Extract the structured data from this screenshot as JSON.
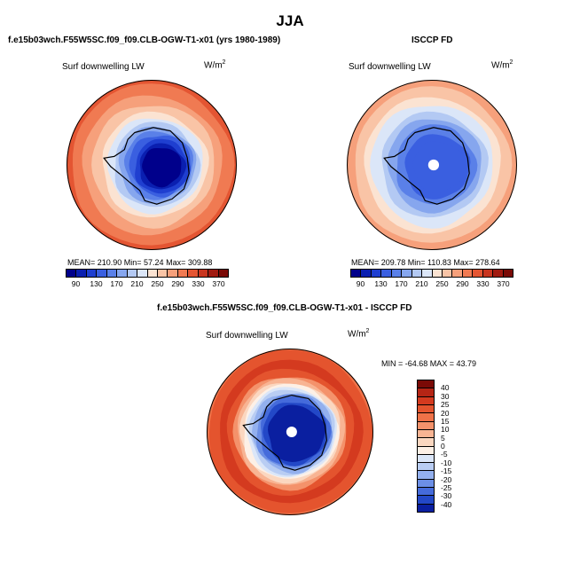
{
  "title": "JJA",
  "panels": {
    "model": {
      "case_title": "f.e15b03wch.F55W5SC.f09_f09.CLB-OGW-T1-x01 (yrs 1980-1989)",
      "variable": "Surf downwelling LW",
      "units": "W/m",
      "units_sup": "2",
      "stats": "MEAN= 210.90   Min=  57.24   Max= 309.88"
    },
    "obs": {
      "case_title": "ISCCP FD",
      "variable": "Surf downwelling LW",
      "units": "W/m",
      "units_sup": "2",
      "stats": "MEAN= 209.78   Min= 110.83   Max= 278.64"
    },
    "diff": {
      "case_title": "f.e15b03wch.F55W5SC.f09_f09.CLB-OGW-T1-x01 - ISCCP FD",
      "variable": "Surf downwelling LW",
      "units": "W/m",
      "units_sup": "2",
      "stats": "MIN = -64.68  MAX =  43.79"
    }
  },
  "chart_data": [
    {
      "type": "heatmap",
      "projection": "south-polar-stereographic",
      "title": "f.e15b03wch.F55W5SC.f09_f09.CLB-OGW-T1-x01 (yrs 1980-1989)",
      "variable": "Surf downwelling LW",
      "units": "W/m2",
      "mean": 210.9,
      "min": 57.24,
      "max": 309.88,
      "colorbar": {
        "orientation": "horizontal",
        "levels": [
          90,
          110,
          130,
          150,
          170,
          190,
          210,
          230,
          250,
          270,
          290,
          310,
          330,
          350,
          370
        ],
        "tick_labels": [
          "90",
          "130",
          "170",
          "210",
          "250",
          "290",
          "330",
          "370"
        ],
        "colors": [
          "#00008b",
          "#0a1fb0",
          "#1f3fd0",
          "#3a5fe0",
          "#5a80e8",
          "#86a6ee",
          "#b3c9f3",
          "#dbe6f8",
          "#fbe3d2",
          "#f9c4a6",
          "#f6a07b",
          "#f07a52",
          "#e45532",
          "#c8351f",
          "#a01a10",
          "#7a0a06"
        ]
      },
      "regions_approx": {
        "east_antarctic_interior": 80,
        "west_antarctic": 150,
        "sea_ice_zone": 200,
        "southern_ocean_north": 300
      }
    },
    {
      "type": "heatmap",
      "projection": "south-polar-stereographic",
      "title": "ISCCP FD",
      "variable": "Surf downwelling LW",
      "units": "W/m2",
      "mean": 209.78,
      "min": 110.83,
      "max": 278.64,
      "colorbar": {
        "orientation": "horizontal",
        "levels": [
          90,
          110,
          130,
          150,
          170,
          190,
          210,
          230,
          250,
          270,
          290,
          310,
          330,
          350,
          370
        ],
        "tick_labels": [
          "90",
          "130",
          "170",
          "210",
          "250",
          "290",
          "330",
          "370"
        ],
        "colors": [
          "#00008b",
          "#0a1fb0",
          "#1f3fd0",
          "#3a5fe0",
          "#5a80e8",
          "#86a6ee",
          "#b3c9f3",
          "#dbe6f8",
          "#fbe3d2",
          "#f9c4a6",
          "#f6a07b",
          "#f07a52",
          "#e45532",
          "#c8351f",
          "#a01a10",
          "#7a0a06"
        ]
      },
      "regions_approx": {
        "east_antarctic_interior": 130,
        "west_antarctic": 160,
        "sea_ice_zone": 210,
        "southern_ocean_north": 265
      }
    },
    {
      "type": "heatmap",
      "projection": "south-polar-stereographic",
      "title": "f.e15b03wch.F55W5SC.f09_f09.CLB-OGW-T1-x01 - ISCCP FD",
      "variable": "Surf downwelling LW",
      "units": "W/m2",
      "min": -64.68,
      "max": 43.79,
      "colorbar": {
        "orientation": "vertical",
        "levels": [
          40,
          30,
          25,
          20,
          15,
          10,
          5,
          0,
          -5,
          -10,
          -15,
          -20,
          -25,
          -30,
          -40
        ],
        "tick_labels": [
          "40",
          "30",
          "25",
          "20",
          "15",
          "10",
          "5",
          "0",
          "-5",
          "-10",
          "-15",
          "-20",
          "-25",
          "-30",
          "-40"
        ],
        "colors": [
          "#7a0a06",
          "#b52515",
          "#d43a1f",
          "#e4542e",
          "#ef7248",
          "#f4926b",
          "#f8b493",
          "#fbd7c0",
          "#fdf0e6",
          "#dbe6f8",
          "#b9cdf3",
          "#93b0ee",
          "#6c8fe6",
          "#456bdb",
          "#2348c7",
          "#0a1fa0"
        ]
      },
      "regions_approx": {
        "east_antarctic_interior": -45,
        "coastal_ring": 0,
        "southern_ocean_north": 25
      }
    }
  ]
}
